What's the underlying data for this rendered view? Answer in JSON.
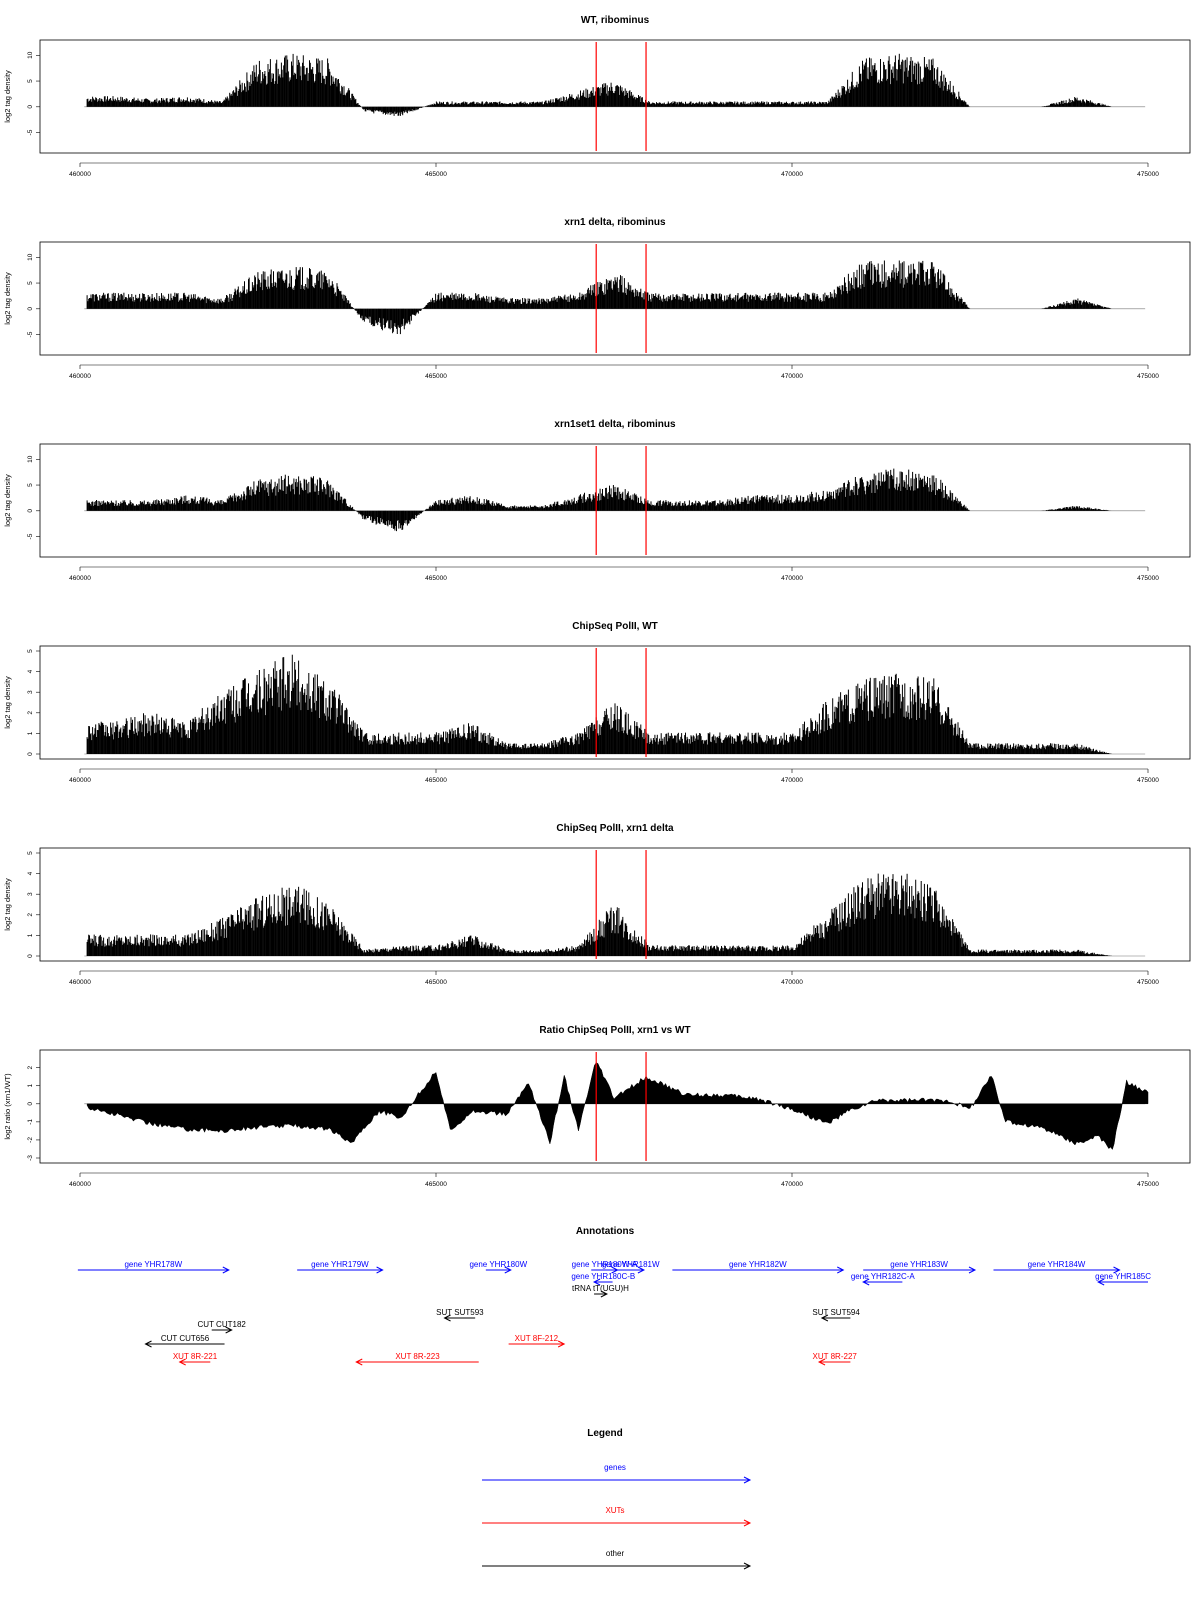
{
  "panels": [
    {
      "title": "WT, ribominus",
      "ylabel": "log2 tag density",
      "yticks": [
        "-5",
        "0",
        "5",
        "10"
      ]
    },
    {
      "title": "xrn1 delta, ribominus",
      "ylabel": "log2 tag density",
      "yticks": [
        "-5",
        "0",
        "5",
        "10"
      ]
    },
    {
      "title": "xrn1set1 delta, ribominus",
      "ylabel": "log2 tag density",
      "yticks": [
        "-5",
        "0",
        "5",
        "10"
      ]
    },
    {
      "title": "ChipSeq PolII, WT",
      "ylabel": "log2 tag density",
      "yticks": [
        "0",
        "1",
        "2",
        "3",
        "4",
        "5"
      ]
    },
    {
      "title": "ChipSeq PolII, xrn1 delta",
      "ylabel": "log2 tag density",
      "yticks": [
        "0",
        "1",
        "2",
        "3",
        "4",
        "5"
      ]
    },
    {
      "title": "Ratio ChipSeq PolII, xrn1 vs WT",
      "ylabel": "log2 ratio (xrn1/WT)",
      "yticks": [
        "-3",
        "-2",
        "-1",
        "0",
        "1",
        "2"
      ]
    }
  ],
  "xticks": [
    "460000",
    "465000",
    "470000",
    "475000"
  ],
  "annotations": {
    "title": "Annotations",
    "features": [
      {
        "label": "gene YHR178W",
        "class": "genes",
        "start": 459970,
        "end": 462090,
        "strand": "+",
        "row": 0
      },
      {
        "label": "gene YHR179W",
        "class": "genes",
        "start": 463050,
        "end": 464250,
        "strand": "+",
        "row": 0
      },
      {
        "label": "gene YHR180W",
        "class": "genes",
        "start": 465700,
        "end": 466050,
        "strand": "+",
        "row": 0
      },
      {
        "label": "gene YHR180W-A",
        "class": "genes",
        "start": 467180,
        "end": 467550,
        "strand": "+",
        "row": 0
      },
      {
        "label": "gene YHR181W",
        "class": "genes",
        "start": 467550,
        "end": 467920,
        "strand": "+",
        "row": 0
      },
      {
        "label": "gene YHR180C-B",
        "class": "genes",
        "start": 467220,
        "end": 467480,
        "strand": "-",
        "row": 1
      },
      {
        "label": "tRNA tT(UGU)H",
        "class": "other",
        "start": 467220,
        "end": 467400,
        "strand": "+",
        "row": 2
      },
      {
        "label": "gene YHR182W",
        "class": "genes",
        "start": 468320,
        "end": 470720,
        "strand": "+",
        "row": 0
      },
      {
        "label": "gene YHR183W",
        "class": "genes",
        "start": 471000,
        "end": 472570,
        "strand": "+",
        "row": 0
      },
      {
        "label": "gene YHR182C-A",
        "class": "genes",
        "start": 471000,
        "end": 471550,
        "strand": "-",
        "row": 1
      },
      {
        "label": "gene YHR184W",
        "class": "genes",
        "start": 472830,
        "end": 474600,
        "strand": "+",
        "row": 0
      },
      {
        "label": "gene YHR185C",
        "class": "genes",
        "start": 474300,
        "end": 475000,
        "strand": "-",
        "row": 1
      },
      {
        "label": "SUT SUT593",
        "class": "other",
        "start": 465120,
        "end": 465550,
        "strand": "-",
        "row": 4
      },
      {
        "label": "SUT SUT594",
        "class": "other",
        "start": 470420,
        "end": 470820,
        "strand": "-",
        "row": 4
      },
      {
        "label": "CUT CUT182",
        "class": "other",
        "start": 461850,
        "end": 462130,
        "strand": "+",
        "row": 5
      },
      {
        "label": "CUT CUT656",
        "class": "other",
        "start": 460920,
        "end": 462030,
        "strand": "-",
        "row": 6
      },
      {
        "label": "XUT 8R-221",
        "class": "XUTs",
        "start": 461400,
        "end": 461830,
        "strand": "-",
        "row": 7
      },
      {
        "label": "XUT 8F-212",
        "class": "XUTs",
        "start": 466020,
        "end": 466800,
        "strand": "+",
        "row": 6
      },
      {
        "label": "XUT 8R-223",
        "class": "XUTs",
        "start": 463880,
        "end": 465600,
        "strand": "-",
        "row": 7
      },
      {
        "label": "XUT 8R-227",
        "class": "XUTs",
        "start": 470380,
        "end": 470820,
        "strand": "-",
        "row": 7
      }
    ]
  },
  "legend": {
    "title": "Legend",
    "items": [
      {
        "label": "genes",
        "color": "#0000ff"
      },
      {
        "label": "XUTs",
        "color": "#ff0000"
      },
      {
        "label": "other",
        "color": "#000000"
      }
    ]
  },
  "chart_data": [
    {
      "type": "bar",
      "title": "WT, ribominus",
      "xlabel": "",
      "ylabel": "log2 tag density",
      "xlim": [
        460000,
        475000
      ],
      "ylim": [
        -8,
        12
      ],
      "vlines": [
        467250,
        467950
      ],
      "series": [
        {
          "x": [
            460500,
            461000,
            461500,
            462000,
            462500,
            463000,
            463500,
            464000,
            464500,
            465000,
            465500,
            466000,
            466500,
            467000,
            467500,
            468000,
            468500,
            469000,
            469500,
            470000,
            470500,
            471000,
            471500,
            472000,
            472500,
            473000,
            473500,
            474000,
            474500
          ],
          "values": [
            2,
            1.5,
            2,
            1,
            9,
            10,
            9,
            -1,
            -2,
            1,
            1,
            1,
            1,
            3,
            5,
            1,
            1,
            1,
            1,
            1,
            1,
            9,
            10,
            9,
            0,
            0,
            0,
            2,
            0
          ]
        }
      ]
    },
    {
      "type": "bar",
      "title": "xrn1 delta, ribominus",
      "xlabel": "",
      "ylabel": "log2 tag density",
      "xlim": [
        460000,
        475000
      ],
      "ylim": [
        -8,
        12
      ],
      "vlines": [
        467250,
        467950
      ],
      "series": [
        {
          "x": [
            460500,
            461000,
            461500,
            462000,
            462500,
            463000,
            463500,
            464000,
            464500,
            465000,
            465500,
            466000,
            466500,
            467000,
            467500,
            468000,
            468500,
            469000,
            469500,
            470000,
            470500,
            471000,
            471500,
            472000,
            472500,
            473000,
            473500,
            474000,
            474500
          ],
          "values": [
            3,
            3,
            3,
            2,
            7,
            8,
            7,
            -3,
            -5,
            3,
            3,
            2,
            2,
            3,
            7,
            3,
            3,
            3,
            3,
            3,
            3,
            9,
            9,
            9,
            0,
            0,
            0,
            2,
            0
          ]
        }
      ]
    },
    {
      "type": "bar",
      "title": "xrn1set1 delta, ribominus",
      "xlabel": "",
      "ylabel": "log2 tag density",
      "xlim": [
        460000,
        475000
      ],
      "ylim": [
        -8,
        12
      ],
      "vlines": [
        467250,
        467950
      ],
      "series": [
        {
          "x": [
            460500,
            461000,
            461500,
            462000,
            462500,
            463000,
            463500,
            464000,
            464500,
            465000,
            465500,
            466000,
            466500,
            467000,
            467500,
            468000,
            468500,
            469000,
            469500,
            470000,
            470500,
            471000,
            471500,
            472000,
            472500,
            473000,
            473500,
            474000,
            474500
          ],
          "values": [
            2,
            2,
            3,
            2,
            6,
            7,
            6,
            -2,
            -4,
            2,
            3,
            1,
            1,
            3,
            5,
            2,
            2,
            2,
            3,
            3,
            4,
            7,
            8,
            7,
            0,
            0,
            0,
            1,
            0
          ]
        }
      ]
    },
    {
      "type": "bar",
      "title": "ChipSeq PolII, WT",
      "xlabel": "",
      "ylabel": "log2 tag density",
      "xlim": [
        460000,
        475000
      ],
      "ylim": [
        0,
        5
      ],
      "vlines": [
        467250,
        467950
      ],
      "series": [
        {
          "x": [
            460500,
            461000,
            461500,
            462000,
            462500,
            463000,
            463500,
            464000,
            464500,
            465000,
            465500,
            466000,
            466500,
            467000,
            467500,
            468000,
            468500,
            469000,
            469500,
            470000,
            470500,
            471000,
            471500,
            472000,
            472500,
            473000,
            473500,
            474000,
            474500
          ],
          "values": [
            1.5,
            2,
            1.5,
            3,
            4,
            4.7,
            3.5,
            1,
            1,
            1,
            1.5,
            0.5,
            0.5,
            1,
            2.5,
            1,
            1,
            1,
            1,
            1,
            2.5,
            3.5,
            3.8,
            3.5,
            0.5,
            0.5,
            0.5,
            0.5,
            0
          ]
        }
      ]
    },
    {
      "type": "bar",
      "title": "ChipSeq PolII, xrn1 delta",
      "xlabel": "",
      "ylabel": "log2 tag density",
      "xlim": [
        460000,
        475000
      ],
      "ylim": [
        0,
        5
      ],
      "vlines": [
        467250,
        467950
      ],
      "series": [
        {
          "x": [
            460500,
            461000,
            461500,
            462000,
            462500,
            463000,
            463500,
            464000,
            464500,
            465000,
            465500,
            466000,
            466500,
            467000,
            467500,
            468000,
            468500,
            469000,
            469500,
            470000,
            470500,
            471000,
            471500,
            472000,
            472500,
            473000,
            473500,
            474000,
            474500
          ],
          "values": [
            1,
            1,
            1,
            1.8,
            2.8,
            3.4,
            2.5,
            0.3,
            0.5,
            0.5,
            1,
            0.3,
            0.3,
            0.5,
            2.5,
            0.5,
            0.5,
            0.5,
            0.5,
            0.5,
            2,
            3.8,
            4,
            3.2,
            0.3,
            0.3,
            0.3,
            0.3,
            0
          ]
        }
      ]
    },
    {
      "type": "area",
      "title": "Ratio ChipSeq PolII, xrn1 vs WT",
      "xlabel": "",
      "ylabel": "log2 ratio (xrn1/WT)",
      "xlim": [
        460000,
        475000
      ],
      "ylim": [
        -3,
        2.7
      ],
      "vlines": [
        467250,
        467950
      ],
      "series": [
        {
          "x": [
            460100,
            460500,
            461000,
            461500,
            462000,
            462500,
            463000,
            463500,
            463800,
            464200,
            464500,
            465000,
            465200,
            465500,
            466000,
            466300,
            466600,
            466800,
            467000,
            467250,
            467500,
            467950,
            468500,
            469000,
            469500,
            470000,
            470500,
            470800,
            471200,
            471800,
            472200,
            472500,
            472800,
            473000,
            473500,
            474000,
            474300,
            474500,
            474700,
            475000
          ],
          "values": [
            -0.2,
            -0.6,
            -1.1,
            -1.4,
            -1.5,
            -1.3,
            -1.2,
            -1.4,
            -2.2,
            -0.4,
            -0.8,
            1.8,
            -1.5,
            -0.4,
            -0.6,
            1.2,
            -2.2,
            1.6,
            -1.5,
            2.4,
            0.3,
            1.5,
            0.5,
            0.5,
            0.3,
            -0.3,
            -1.1,
            -0.4,
            0.2,
            0.2,
            0.2,
            -0.3,
            1.6,
            -1,
            -1.3,
            -2.2,
            -1.8,
            -2.6,
            1.2,
            0.6
          ]
        }
      ]
    }
  ]
}
